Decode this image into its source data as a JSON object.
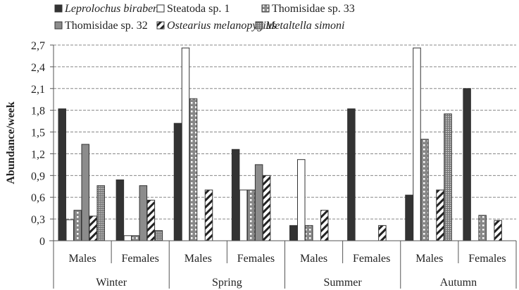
{
  "chart_data": {
    "type": "bar",
    "title": "",
    "ylabel": "Abundance/week",
    "xlabel": "",
    "ylim": [
      0,
      2.7
    ],
    "yticks": [
      "0",
      "0,3",
      "0,6",
      "0,9",
      "1,2",
      "1,5",
      "1,8",
      "2,1",
      "2,4",
      "2,7"
    ],
    "grid": "horizontal dashed",
    "legend_position": "top",
    "seasons": [
      "Winter",
      "Spring",
      "Summer",
      "Autumn"
    ],
    "categories": [
      "Males",
      "Females",
      "Males",
      "Females",
      "Males",
      "Females",
      "Males",
      "Females"
    ],
    "series": [
      {
        "name": "Leprolochus birabeni",
        "italic": true,
        "fill": "#333333",
        "pattern": "solid",
        "values": [
          1.82,
          0.84,
          1.62,
          1.26,
          0.21,
          1.82,
          0.63,
          2.1
        ]
      },
      {
        "name": "Steatoda sp. 1",
        "italic": false,
        "fill": "#ffffff",
        "pattern": "solid",
        "values": [
          0.29,
          0.07,
          2.66,
          0.7,
          1.12,
          0,
          2.66,
          0
        ]
      },
      {
        "name": "Thomisidae sp. 33",
        "italic": false,
        "fill": "#888888",
        "pattern": "checker",
        "values": [
          0.42,
          0.07,
          1.96,
          0.7,
          0.21,
          0,
          1.4,
          0.35
        ]
      },
      {
        "name": "Thomisidae sp. 32",
        "italic": false,
        "fill": "#8c8c8c",
        "pattern": "solid",
        "values": [
          1.33,
          0.76,
          0,
          1.05,
          0,
          0,
          0,
          0
        ]
      },
      {
        "name": "Ostearius melanopygius",
        "italic": true,
        "fill": "#ffffff",
        "pattern": "diagonal",
        "values": [
          0.34,
          0.56,
          0.7,
          0.9,
          0.42,
          0.21,
          0.7,
          0.28
        ]
      },
      {
        "name": "Metaltella simoni",
        "italic": true,
        "fill": "#999999",
        "pattern": "fine-dots",
        "values": [
          0.76,
          0.14,
          0,
          0,
          0,
          0,
          1.75,
          0
        ]
      }
    ]
  }
}
